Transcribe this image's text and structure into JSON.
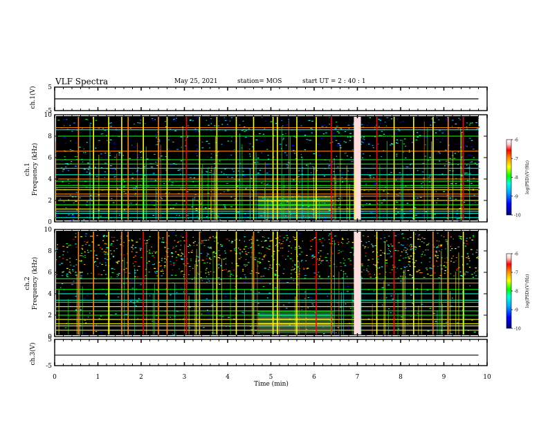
{
  "header": {
    "title": "VLF Spectra",
    "date": "May 25, 2021",
    "station": "station= MOS",
    "start": "start  UT =  2 : 40 : 1"
  },
  "colors": {
    "spectrogram_background": "#000000",
    "colormap": [
      "#00007a",
      "#0000ff",
      "#00aaff",
      "#00ffdd",
      "#00ff00",
      "#ffff00",
      "#ff8800",
      "#ff0000",
      "#ffdddd",
      "#ffffff"
    ]
  },
  "chart_data": [
    {
      "type": "line",
      "name": "ch1-waveform",
      "ylabel": "ch.1(V)",
      "ylim": [
        -5,
        5
      ],
      "y_ticks": [
        "5",
        "-5"
      ],
      "xlim": [
        0,
        10
      ],
      "x": [
        0,
        9.8
      ],
      "y": [
        0,
        0
      ]
    },
    {
      "type": "heatmap",
      "name": "ch1-spectrogram",
      "ylabel": "ch.1\nFrequency (kHz)",
      "ylim": [
        0,
        10
      ],
      "y_ticks": [
        "0",
        "2",
        "4",
        "6",
        "8",
        "10"
      ],
      "xlim": [
        0,
        10
      ],
      "data_end_min": 9.8,
      "colorbar": {
        "label": "log(PSD)(V²/Hz)",
        "range": [
          -10,
          -6
        ],
        "ticks": [
          "-6",
          "-7",
          "-8",
          "-9",
          "-10"
        ]
      },
      "impulsive_events_min": [
        0.55,
        0.9,
        1.25,
        1.55,
        1.7,
        2.05,
        2.4,
        2.6,
        3.05,
        3.35,
        3.75,
        4.2,
        4.6,
        5.05,
        5.15,
        5.6,
        6.05,
        6.4,
        6.95,
        7.0,
        7.05,
        7.45,
        7.85,
        8.3,
        8.75,
        9.1,
        9.45
      ],
      "strongest_event_min": 7.0,
      "tone_lines_khz": [
        0.4,
        0.8,
        1.0,
        1.2,
        1.6,
        2.0,
        2.4,
        2.6,
        3.0,
        3.2,
        3.4,
        3.8,
        4.0,
        4.4,
        5.0,
        5.4,
        5.8,
        6.6,
        8.0,
        8.6,
        8.8
      ],
      "secondary_band_khz": [
        0.4,
        2.4
      ],
      "secondary_band_time_min": [
        4.7,
        6.45
      ]
    },
    {
      "type": "heatmap",
      "name": "ch2-spectrogram",
      "ylabel": "ch.2\nFrequency (kHz)",
      "ylim": [
        0,
        10
      ],
      "y_ticks": [
        "0",
        "2",
        "4",
        "6",
        "8",
        "10"
      ],
      "xlim": [
        0,
        10
      ],
      "data_end_min": 9.8,
      "colorbar": {
        "label": "log(PSD)(V²/Hz)",
        "range": [
          -10,
          -6
        ],
        "ticks": [
          "-6",
          "-7",
          "-8",
          "-9",
          "-10"
        ]
      },
      "impulsive_events_min": [
        0.55,
        0.9,
        1.25,
        1.55,
        1.7,
        2.05,
        2.4,
        2.6,
        3.05,
        3.35,
        3.75,
        4.2,
        4.6,
        5.05,
        5.15,
        5.6,
        6.05,
        6.4,
        6.95,
        7.0,
        7.05,
        7.45,
        7.85,
        8.3,
        8.75,
        9.1,
        9.45
      ],
      "strongest_event_min": 7.0,
      "noise_band_khz": [
        5.5,
        9.5
      ],
      "tone_lines_khz": [
        0.6,
        1.0,
        1.2,
        1.6,
        2.0,
        2.4,
        2.8,
        3.2,
        3.4,
        4.0,
        4.4,
        5.0,
        5.4
      ],
      "secondary_band_khz": [
        0.4,
        2.4
      ],
      "secondary_band_time_min": [
        4.7,
        6.45
      ]
    },
    {
      "type": "line",
      "name": "ch3-waveform",
      "ylabel": "ch.3(V)",
      "ylim": [
        -5,
        5
      ],
      "y_ticks": [
        "5",
        "-5"
      ],
      "xlim": [
        0,
        10
      ],
      "x": [
        0,
        9.8
      ],
      "y": [
        -1,
        -1
      ]
    }
  ],
  "x_axis": {
    "label": "Time (min)",
    "ticks": [
      "0",
      "1",
      "2",
      "3",
      "4",
      "5",
      "6",
      "7",
      "8",
      "9",
      "10"
    ]
  }
}
